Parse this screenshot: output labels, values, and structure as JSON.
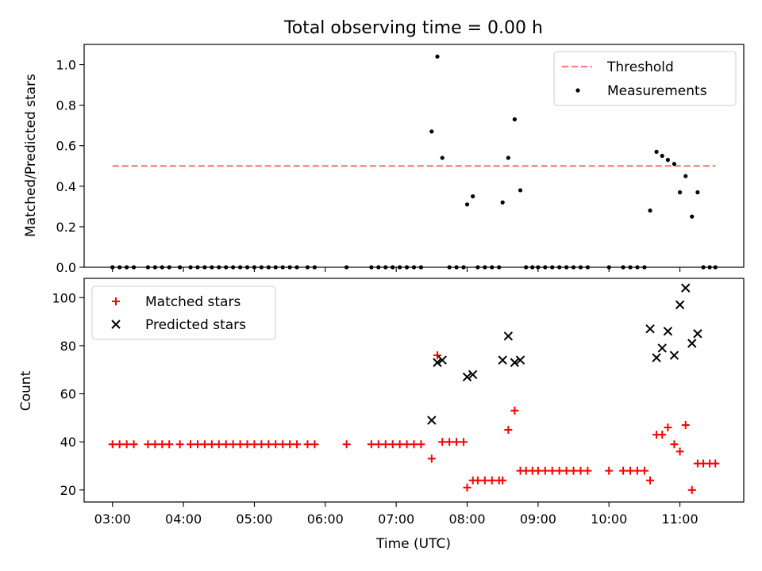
{
  "chart_data": [
    {
      "type": "scatter",
      "title": "Total observing time = 0.00 h",
      "ylabel": "Matched/Predicted stars",
      "xlabel": "",
      "xlim_hours": [
        2.6,
        11.9
      ],
      "ylim": [
        0,
        1.1
      ],
      "yticks": [
        0.0,
        0.2,
        0.4,
        0.6,
        0.8,
        1.0
      ],
      "ytick_labels": [
        "0.0",
        "0.2",
        "0.4",
        "0.6",
        "0.8",
        "1.0"
      ],
      "xticks_hours": [
        3,
        4,
        5,
        6,
        7,
        8,
        9,
        10,
        11
      ],
      "legend_position": "upper right",
      "threshold": {
        "name": "Threshold",
        "value": 0.5,
        "x_range_hours": [
          3.0,
          11.5
        ],
        "color": "#ff7f7f"
      },
      "series": [
        {
          "name": "Measurements",
          "color": "#000000",
          "x_hours": [
            3.0,
            3.1,
            3.2,
            3.3,
            3.5,
            3.6,
            3.7,
            3.8,
            3.95,
            4.1,
            4.2,
            4.3,
            4.4,
            4.5,
            4.6,
            4.7,
            4.8,
            4.9,
            5.0,
            5.1,
            5.2,
            5.3,
            5.4,
            5.5,
            5.6,
            5.75,
            5.85,
            6.3,
            6.65,
            6.75,
            6.85,
            6.95,
            7.05,
            7.15,
            7.25,
            7.35,
            7.5,
            7.58,
            7.65,
            7.75,
            7.85,
            7.95,
            8.0,
            8.08,
            8.15,
            8.25,
            8.35,
            8.45,
            8.5,
            8.58,
            8.67,
            8.75,
            8.83,
            8.92,
            9.0,
            9.1,
            9.2,
            9.3,
            9.4,
            9.5,
            9.6,
            9.7,
            10.0,
            10.2,
            10.3,
            10.4,
            10.5,
            10.58,
            10.67,
            10.75,
            10.83,
            10.92,
            11.0,
            11.08,
            11.17,
            11.25,
            11.33,
            11.42,
            11.5
          ],
          "y": [
            0,
            0,
            0,
            0,
            0,
            0,
            0,
            0,
            0,
            0,
            0,
            0,
            0,
            0,
            0,
            0,
            0,
            0,
            0,
            0,
            0,
            0,
            0,
            0,
            0,
            0,
            0,
            0,
            0,
            0,
            0,
            0,
            0,
            0,
            0,
            0,
            0.67,
            1.04,
            0.54,
            0,
            0,
            0,
            0.31,
            0.35,
            0,
            0,
            0,
            0,
            0.32,
            0.54,
            0.73,
            0.38,
            0,
            0,
            0,
            0,
            0,
            0,
            0,
            0,
            0,
            0,
            0,
            0,
            0,
            0,
            0,
            0.28,
            0.57,
            0.55,
            0.53,
            0.51,
            0.37,
            0.45,
            0.25,
            0.37,
            0,
            0,
            0
          ]
        }
      ]
    },
    {
      "type": "scatter",
      "title": "",
      "ylabel": "Count",
      "xlabel": "Time (UTC)",
      "xlim_hours": [
        2.6,
        11.9
      ],
      "ylim": [
        15,
        108
      ],
      "yticks": [
        20,
        40,
        60,
        80,
        100
      ],
      "ytick_labels": [
        "20",
        "40",
        "60",
        "80",
        "100"
      ],
      "xticks_hours": [
        3,
        4,
        5,
        6,
        7,
        8,
        9,
        10,
        11
      ],
      "xtick_labels": [
        "03:00",
        "04:00",
        "05:00",
        "06:00",
        "07:00",
        "08:00",
        "09:00",
        "10:00",
        "11:00"
      ],
      "legend_position": "upper left",
      "series": [
        {
          "name": "Matched stars",
          "marker": "plus",
          "color": "#ff0000",
          "x_hours": [
            3.0,
            3.1,
            3.2,
            3.3,
            3.5,
            3.6,
            3.7,
            3.8,
            3.95,
            4.1,
            4.2,
            4.3,
            4.4,
            4.5,
            4.6,
            4.7,
            4.8,
            4.9,
            5.0,
            5.1,
            5.2,
            5.3,
            5.4,
            5.5,
            5.6,
            5.75,
            5.85,
            6.3,
            6.65,
            6.75,
            6.85,
            6.95,
            7.05,
            7.15,
            7.25,
            7.35,
            7.5,
            7.58,
            7.65,
            7.75,
            7.85,
            7.95,
            8.0,
            8.08,
            8.15,
            8.25,
            8.35,
            8.45,
            8.5,
            8.58,
            8.67,
            8.75,
            8.83,
            8.92,
            9.0,
            9.1,
            9.2,
            9.3,
            9.4,
            9.5,
            9.6,
            9.7,
            10.0,
            10.2,
            10.3,
            10.4,
            10.5,
            10.58,
            10.67,
            10.75,
            10.83,
            10.92,
            11.0,
            11.08,
            11.17,
            11.25,
            11.33,
            11.42,
            11.5
          ],
          "y": [
            39,
            39,
            39,
            39,
            39,
            39,
            39,
            39,
            39,
            39,
            39,
            39,
            39,
            39,
            39,
            39,
            39,
            39,
            39,
            39,
            39,
            39,
            39,
            39,
            39,
            39,
            39,
            39,
            39,
            39,
            39,
            39,
            39,
            39,
            39,
            39,
            33,
            76,
            40,
            40,
            40,
            40,
            21,
            24,
            24,
            24,
            24,
            24,
            24,
            45,
            53,
            28,
            28,
            28,
            28,
            28,
            28,
            28,
            28,
            28,
            28,
            28,
            28,
            28,
            28,
            28,
            28,
            24,
            43,
            43,
            46,
            39,
            36,
            47,
            20,
            31,
            31,
            31,
            31
          ]
        },
        {
          "name": "Predicted stars",
          "marker": "x",
          "color": "#000000",
          "x_hours": [
            7.5,
            7.58,
            7.65,
            8.0,
            8.08,
            8.5,
            8.58,
            8.67,
            8.75,
            10.58,
            10.67,
            10.75,
            10.83,
            10.92,
            11.0,
            11.08,
            11.17,
            11.25
          ],
          "y": [
            49,
            73,
            74,
            67,
            68,
            74,
            84,
            73,
            74,
            87,
            75,
            79,
            86,
            76,
            97,
            104,
            81,
            85
          ]
        }
      ]
    }
  ]
}
